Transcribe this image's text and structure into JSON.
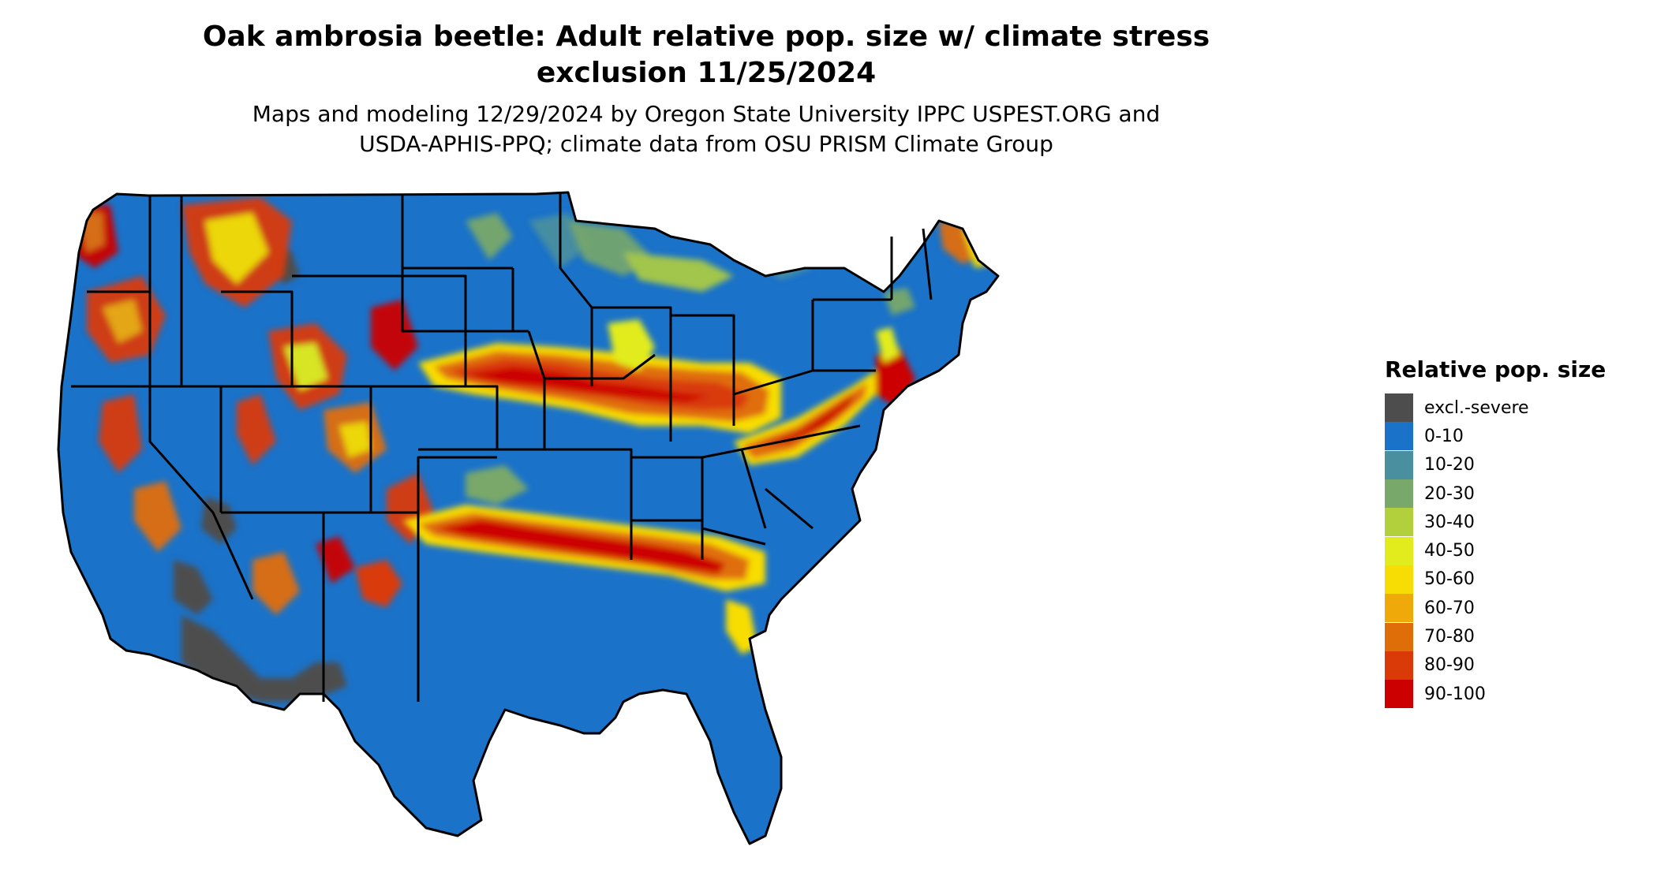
{
  "title": {
    "line1": "Oak ambrosia beetle: Adult relative pop. size w/ climate stress",
    "line2": "exclusion 11/25/2024"
  },
  "subtitle": {
    "line1": "Maps and modeling 12/29/2024 by Oregon State University IPPC USPEST.ORG and",
    "line2": "USDA-APHIS-PPQ; climate data from OSU PRISM Climate Group"
  },
  "legend": {
    "title": "Relative pop. size",
    "items": [
      {
        "label": "excl.-severe",
        "color": "#4d4d4d"
      },
      {
        "label": "0-10",
        "color": "#1a72c9"
      },
      {
        "label": "10-20",
        "color": "#4a8fa0"
      },
      {
        "label": "20-30",
        "color": "#79a86b"
      },
      {
        "label": "30-40",
        "color": "#b2cf3c"
      },
      {
        "label": "40-50",
        "color": "#e2ec1c"
      },
      {
        "label": "50-60",
        "color": "#f8dd05"
      },
      {
        "label": "60-70",
        "color": "#efa908"
      },
      {
        "label": "70-80",
        "color": "#e06e08"
      },
      {
        "label": "80-90",
        "color": "#d93a07"
      },
      {
        "label": "90-100",
        "color": "#cc0000"
      }
    ]
  },
  "map": {
    "region": "Contiguous United States",
    "background_color": "#1a72c9",
    "border_color": "#000000"
  }
}
